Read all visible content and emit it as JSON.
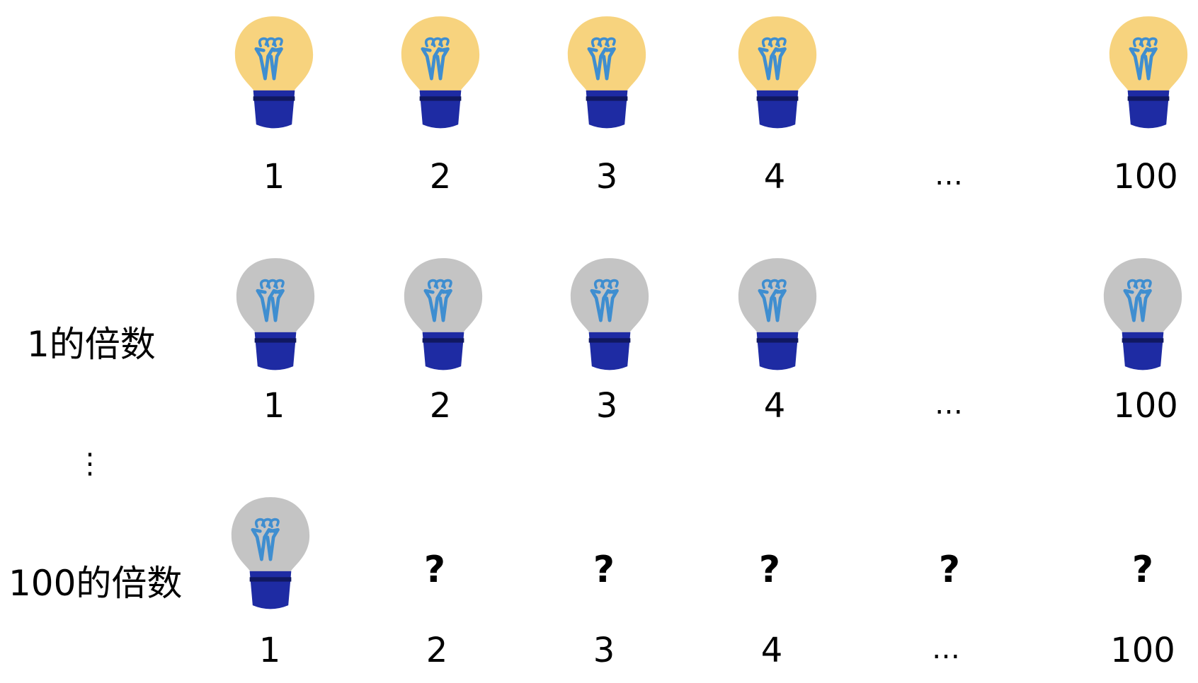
{
  "bulb_colors": {
    "on": "#F7D37E",
    "off": "#C4C4C4",
    "base": "#1E2BA3",
    "base_band": "#101860",
    "filament": "#3F8ED0"
  },
  "rows": [
    {
      "label": "",
      "bulbs": [
        "on",
        "on",
        "on",
        "on",
        "on"
      ],
      "numbers": [
        "1",
        "2",
        "3",
        "4",
        "…",
        "100"
      ]
    },
    {
      "label": "1的倍数",
      "bulbs": [
        "off",
        "off",
        "off",
        "off",
        "off"
      ],
      "numbers": [
        "1",
        "2",
        "3",
        "4",
        "…",
        "100"
      ]
    },
    {
      "label": "100的倍数",
      "bulbs": [
        "off"
      ],
      "unknown_marks": [
        "?",
        "?",
        "?",
        "?",
        "?"
      ],
      "numbers": [
        "1",
        "2",
        "3",
        "4",
        "…",
        "100"
      ]
    }
  ],
  "vertical_ellipsis": "⋮"
}
